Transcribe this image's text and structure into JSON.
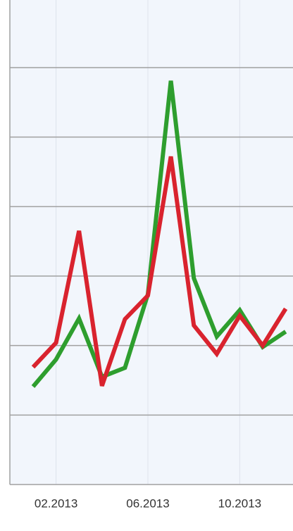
{
  "chart_data": {
    "type": "line",
    "categories": [
      null,
      "02.2013",
      null,
      null,
      null,
      "06.2013",
      null,
      null,
      null,
      "10.2013",
      null,
      null
    ],
    "series": [
      {
        "color": "#2e9e2e",
        "values": [
          1.41,
          1.8,
          2.39,
          1.55,
          1.68,
          2.74,
          5.81,
          2.97,
          2.13,
          2.51,
          1.98,
          2.2
        ]
      },
      {
        "color": "#d9232e",
        "values": [
          1.69,
          2.04,
          3.65,
          1.42,
          2.38,
          2.72,
          4.72,
          2.29,
          1.88,
          2.43,
          2.0,
          2.53
        ]
      }
    ],
    "ylim": [
      0,
      7
    ],
    "yticks": [
      0,
      1,
      2,
      3,
      4,
      5,
      6
    ],
    "grid": true
  }
}
